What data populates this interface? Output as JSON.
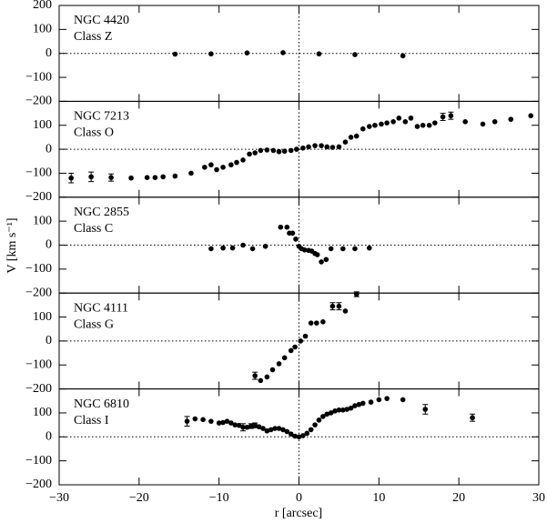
{
  "chart_data": [
    {
      "type": "scatter",
      "title": "NGC 4420",
      "subtitle": "Class Z",
      "color": "#000000",
      "x": [
        -15.5,
        -11,
        -6.5,
        -2,
        2.5,
        7,
        13
      ],
      "values": [
        -3,
        -2,
        2,
        3,
        -2,
        -5,
        -10
      ],
      "ylim": [
        -200,
        200
      ],
      "yticks": [
        {
          "value": -200,
          "label": "−200"
        },
        {
          "value": -100,
          "label": "−100"
        },
        0,
        100,
        200
      ]
    },
    {
      "type": "scatter",
      "title": "NGC 7213",
      "subtitle": "Class O",
      "color": "#000000",
      "x": [
        -28.5,
        -26,
        -23.5,
        -21,
        -19,
        -18,
        -17,
        -15.5,
        -13.5,
        -11.8,
        -11,
        -10.3,
        -9.5,
        -8.5,
        -7.8,
        -7,
        -6.2,
        -5.5,
        -4.8,
        -4,
        -3.2,
        -2.5,
        -1.8,
        -1,
        -0.3,
        0.5,
        1.2,
        2,
        2.8,
        3.5,
        4.2,
        5,
        5.8,
        6.5,
        7.2,
        8,
        8.8,
        9.5,
        10.3,
        11,
        11.8,
        12.5,
        13.3,
        14,
        14.8,
        15.5,
        16.3,
        17,
        18,
        19,
        20.8,
        23,
        24.5,
        26.5,
        29
      ],
      "values": [
        -120,
        -115,
        -118,
        -120,
        -118,
        -118,
        -115,
        -112,
        -100,
        -75,
        -65,
        -85,
        -75,
        -65,
        -55,
        -45,
        -20,
        -15,
        -5,
        -3,
        -5,
        -10,
        -8,
        -5,
        0,
        5,
        10,
        15,
        15,
        10,
        8,
        10,
        30,
        50,
        55,
        85,
        95,
        100,
        105,
        110,
        115,
        130,
        115,
        130,
        95,
        100,
        100,
        110,
        135,
        140,
        115,
        105,
        115,
        125,
        140
      ],
      "errors": [
        20,
        20,
        15,
        null,
        null,
        null,
        null,
        null,
        null,
        null,
        null,
        null,
        null,
        null,
        null,
        null,
        null,
        null,
        null,
        null,
        null,
        null,
        null,
        null,
        null,
        null,
        null,
        null,
        null,
        null,
        null,
        null,
        null,
        null,
        null,
        null,
        null,
        null,
        null,
        null,
        null,
        null,
        null,
        null,
        null,
        null,
        null,
        null,
        15,
        15,
        null,
        null,
        null,
        null,
        null
      ],
      "ylim": [
        -200,
        200
      ],
      "yticks": [
        {
          "value": -200,
          "label": "−200"
        },
        {
          "value": -100,
          "label": "−100"
        },
        0,
        100
      ]
    },
    {
      "type": "scatter",
      "title": "NGC 2855",
      "subtitle": "Class C",
      "color": "#000000",
      "y_label": "V [km s⁻¹]",
      "x": [
        -11,
        -9.5,
        -8.3,
        -7,
        -5.8,
        -4.2,
        -2.3,
        -1.5,
        -1.2,
        -0.8,
        -0.4,
        0,
        0.3,
        0.7,
        1.2,
        1.6,
        2,
        2.3,
        2.8,
        3.4,
        4,
        5.5,
        7,
        8.8
      ],
      "values": [
        -15,
        -12,
        -12,
        0,
        -15,
        -5,
        75,
        75,
        50,
        50,
        25,
        -5,
        -15,
        -20,
        -22,
        -25,
        -35,
        -40,
        -70,
        -60,
        -15,
        -15,
        -15,
        -12
      ],
      "ylim": [
        -200,
        200
      ],
      "yticks": [
        {
          "value": -200,
          "label": "−200"
        },
        {
          "value": -100,
          "label": "−100"
        },
        0,
        100
      ]
    },
    {
      "type": "scatter",
      "title": "NGC 4111",
      "subtitle": "Class G",
      "color": "#000000",
      "x": [
        -5.5,
        -4.8,
        -4,
        -3.3,
        -2.5,
        -1.8,
        -1,
        -0.5,
        0.2,
        0.8,
        1.5,
        2.2,
        3,
        4.2,
        5,
        5.8,
        7.2
      ],
      "values": [
        -145,
        -165,
        -150,
        -120,
        -95,
        -70,
        -40,
        -25,
        0,
        20,
        75,
        75,
        80,
        145,
        145,
        125,
        195
      ],
      "errors": [
        15,
        null,
        null,
        null,
        null,
        null,
        null,
        null,
        null,
        null,
        null,
        null,
        null,
        15,
        15,
        null,
        10
      ],
      "ylim": [
        -200,
        200
      ],
      "yticks": [
        {
          "value": -200,
          "label": "−200"
        },
        {
          "value": -100,
          "label": "−100"
        },
        0,
        100
      ]
    },
    {
      "type": "scatter",
      "title": "NGC 6810",
      "subtitle": "Class I",
      "color": "#000000",
      "x": [
        -14,
        -13,
        -12,
        -11,
        -10,
        -9.5,
        -9,
        -8.5,
        -8,
        -7.5,
        -7,
        -6.5,
        -6,
        -5.5,
        -5,
        -4.5,
        -4,
        -3.5,
        -3,
        -2.5,
        -2,
        -1.5,
        -1,
        -0.5,
        0,
        0.5,
        1,
        1.5,
        2,
        2.5,
        3,
        3.5,
        4,
        4.5,
        5,
        5.5,
        6,
        6.5,
        7,
        7.5,
        8,
        9,
        10,
        11,
        13,
        15.8,
        21.7
      ],
      "values": [
        65,
        75,
        72,
        65,
        58,
        60,
        65,
        58,
        50,
        48,
        40,
        40,
        45,
        48,
        42,
        35,
        25,
        30,
        35,
        35,
        30,
        22,
        12,
        3,
        0,
        5,
        15,
        30,
        50,
        70,
        85,
        95,
        100,
        108,
        112,
        112,
        115,
        120,
        130,
        135,
        140,
        145,
        155,
        160,
        155,
        115,
        80
      ],
      "errors": [
        20,
        null,
        null,
        null,
        null,
        null,
        null,
        null,
        null,
        null,
        15,
        null,
        10,
        10,
        null,
        null,
        null,
        null,
        null,
        null,
        null,
        null,
        null,
        null,
        null,
        null,
        null,
        null,
        null,
        null,
        null,
        null,
        null,
        null,
        null,
        null,
        null,
        null,
        null,
        null,
        null,
        null,
        null,
        null,
        null,
        20,
        15
      ],
      "ylim": [
        -200,
        200
      ],
      "yticks": [
        {
          "value": -200,
          "label": "−200"
        },
        {
          "value": -100,
          "label": "−100"
        },
        0,
        100
      ],
      "xlim": [
        -30,
        30
      ],
      "xticks": [
        {
          "value": -30,
          "label": "−30"
        },
        {
          "value": -20,
          "label": "−20"
        },
        {
          "value": -10,
          "label": "−10"
        },
        0,
        10,
        20,
        30
      ],
      "x_label": "r [arcsec]"
    }
  ]
}
